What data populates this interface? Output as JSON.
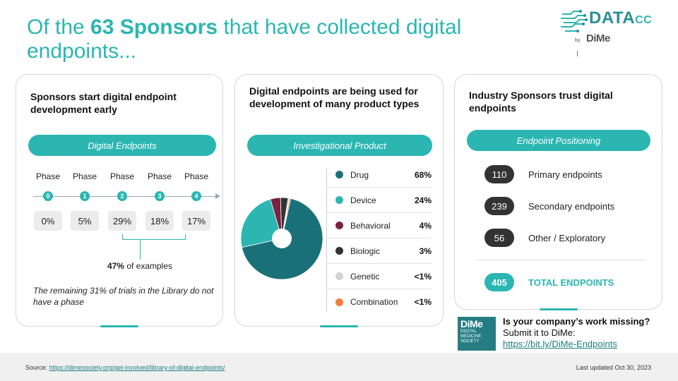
{
  "header": {
    "title_prefix": "Of the ",
    "title_bold": "63 Sponsors",
    "title_suffix": " that have collected digital endpoints..."
  },
  "logo": {
    "word": "DATA",
    "word_small": "CC",
    "by": "by",
    "dime": "DiMe"
  },
  "colors": {
    "accent": "#2bb6b2",
    "dark_teal": "#1a7078",
    "behavioral": "#7a2240",
    "biologic": "#333333",
    "genetic": "#d3d3d3",
    "combination": "#f47c3c"
  },
  "card1": {
    "heading": "Sponsors start digital endpoint development early",
    "pill": "Digital Endpoints",
    "phases": [
      {
        "label": "Phase",
        "num": "0",
        "pct": "0%"
      },
      {
        "label": "Phase",
        "num": "1",
        "pct": "5%"
      },
      {
        "label": "Phase",
        "num": "2",
        "pct": "29%"
      },
      {
        "label": "Phase",
        "num": "3",
        "pct": "18%"
      },
      {
        "label": "Phase",
        "num": "4",
        "pct": "17%"
      }
    ],
    "examples_bold": "47%",
    "examples_rest": " of examples",
    "remaining": "The remaining 31% of trials in the Library do not have a phase"
  },
  "card2": {
    "heading": "Digital endpoints are being used for development of many product types",
    "pill": "Investigational Product",
    "items": [
      {
        "name": "Drug",
        "value": "68%",
        "color": "#1a7078"
      },
      {
        "name": "Device",
        "value": "24%",
        "color": "#2bb6b2"
      },
      {
        "name": "Behavioral",
        "value": "4%",
        "color": "#7a2240"
      },
      {
        "name": "Biologic",
        "value": "3%",
        "color": "#333333"
      },
      {
        "name": "Genetic",
        "value": "<1%",
        "color": "#d3d3d3"
      },
      {
        "name": "Combination",
        "value": "<1%",
        "color": "#f47c3c"
      }
    ]
  },
  "chart_data": {
    "type": "pie",
    "categories": [
      "Drug",
      "Device",
      "Behavioral",
      "Biologic",
      "Genetic",
      "Combination"
    ],
    "values": [
      68,
      24,
      4,
      3,
      0.5,
      0.5
    ],
    "title": "",
    "legend": "right"
  },
  "card3": {
    "heading": "Industry Sponsors trust digital endpoints",
    "pill": "Endpoint Positioning",
    "rows": [
      {
        "count": "110",
        "label": "Primary endpoints"
      },
      {
        "count": "239",
        "label": "Secondary endpoints"
      },
      {
        "count": "56",
        "label": "Other / Exploratory"
      }
    ],
    "total": {
      "count": "405",
      "label": "TOTAL ENDPOINTS"
    }
  },
  "missing": {
    "badge_big": "DiMe",
    "badge_lines": [
      "DIGITAL",
      "MEDICINE",
      "SOCIETY"
    ],
    "question": "Is your company’s work missing?",
    "submit": "Submit it to DiMe:",
    "link": "https://bit.ly/DiMe-Endpoints"
  },
  "footer": {
    "source_label": "Source: ",
    "source_link": "https://dimesociety.org/get-involved/library-of-digital-endpoints/",
    "updated": "Last updated Oct 30, 2023"
  }
}
